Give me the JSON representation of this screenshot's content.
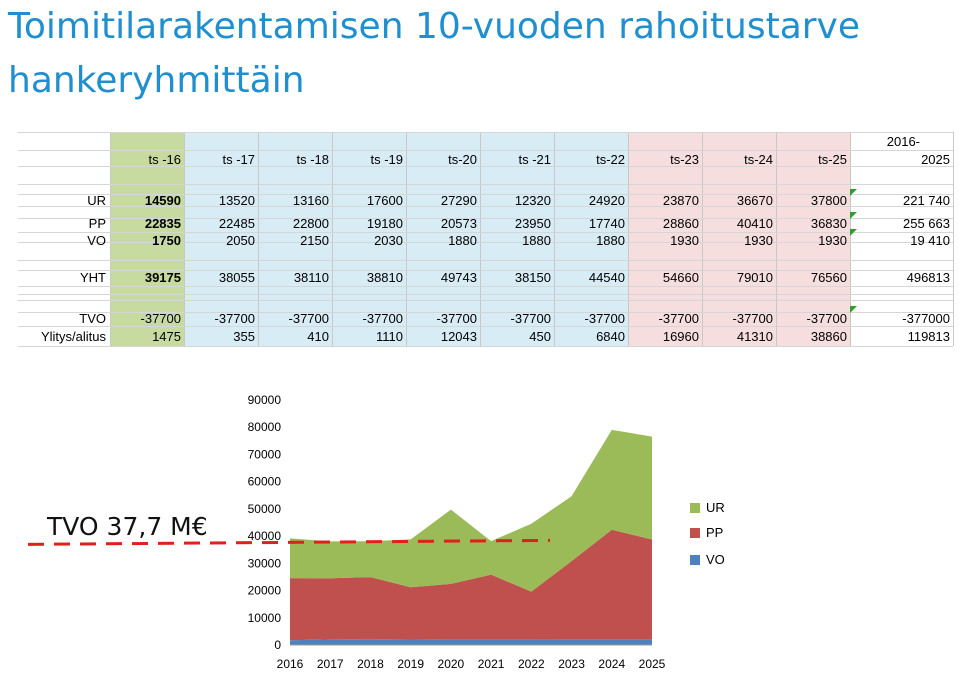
{
  "title": "Toimitilarakentamisen 10-vuoden rahoitustarve hankeryhmittäin",
  "table": {
    "headers": [
      "ts -16",
      "ts -17",
      "ts -18",
      "ts -19",
      "ts-20",
      "ts -21",
      "ts-22",
      "ts-23",
      "ts-24",
      "ts-25"
    ],
    "total_header_top": "2016-",
    "total_header_bottom": "2025",
    "rows": [
      {
        "label": "UR",
        "values": [
          "14590",
          "13520",
          "13160",
          "17600",
          "27290",
          "12320",
          "24920",
          "23870",
          "36670",
          "37800"
        ],
        "total": "221 740"
      },
      {
        "label": "PP",
        "values": [
          "22835",
          "22485",
          "22800",
          "19180",
          "20573",
          "23950",
          "17740",
          "28860",
          "40410",
          "36830"
        ],
        "total": "255 663"
      },
      {
        "label": "VO",
        "values": [
          "1750",
          "2050",
          "2150",
          "2030",
          "1880",
          "1880",
          "1880",
          "1930",
          "1930",
          "1930"
        ],
        "total": "19 410"
      },
      {
        "label": "YHT",
        "values": [
          "39175",
          "38055",
          "38110",
          "38810",
          "49743",
          "38150",
          "44540",
          "54660",
          "79010",
          "76560"
        ],
        "total": "496813"
      },
      {
        "label": "TVO",
        "values": [
          "-37700",
          "-37700",
          "-37700",
          "-37700",
          "-37700",
          "-37700",
          "-37700",
          "-37700",
          "-37700",
          "-37700"
        ],
        "total": "-377000"
      },
      {
        "label": "Ylitys/alitus",
        "values": [
          "1475",
          "355",
          "410",
          "1110",
          "12043",
          "450",
          "6840",
          "16960",
          "41310",
          "38860"
        ],
        "total": "119813"
      }
    ]
  },
  "annotation": "TVO 37,7 M€",
  "colors": {
    "UR": "#9bbb59",
    "PP": "#c0504d",
    "VO": "#4f81bd",
    "dash": "#e0201a",
    "title": "#1f8fcf"
  },
  "chart_data": {
    "type": "area",
    "stacked": true,
    "x": [
      "2016",
      "2017",
      "2018",
      "2019",
      "2020",
      "2021",
      "2022",
      "2023",
      "2024",
      "2025"
    ],
    "series": [
      {
        "name": "VO",
        "values": [
          1750,
          2050,
          2150,
          2030,
          1880,
          1880,
          1880,
          1930,
          1930,
          1930
        ]
      },
      {
        "name": "PP",
        "values": [
          22835,
          22485,
          22800,
          19180,
          20573,
          23950,
          17740,
          28860,
          40410,
          36830
        ]
      },
      {
        "name": "UR",
        "values": [
          14590,
          13520,
          13160,
          17600,
          27290,
          12320,
          24920,
          23870,
          36670,
          37800
        ]
      }
    ],
    "legend": [
      "UR",
      "PP",
      "VO"
    ],
    "legend_position": "right",
    "yticks": [
      "0",
      "10000",
      "20000",
      "30000",
      "40000",
      "50000",
      "60000",
      "70000",
      "80000",
      "90000"
    ],
    "ylim": [
      0,
      90000
    ],
    "reference_line": 37700
  }
}
